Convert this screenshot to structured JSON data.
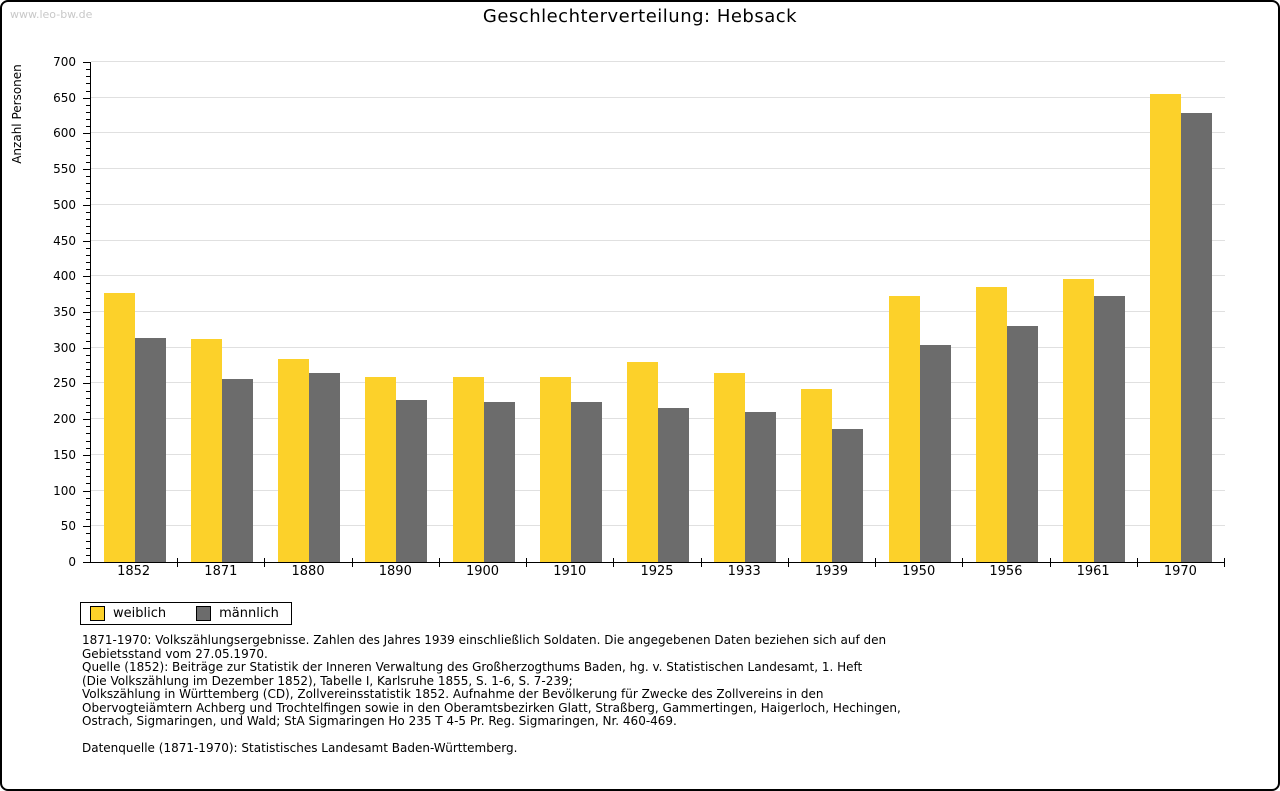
{
  "watermark": "www.leo-bw.de",
  "title": "Geschlechterverteilung: Hebsack",
  "chart_data": {
    "type": "bar",
    "title": "Geschlechterverteilung: Hebsack",
    "xlabel": "",
    "ylabel": "Anzahl Personen",
    "ylim": [
      0,
      700
    ],
    "ytick_step": 50,
    "y_minor_step": 10,
    "grid": true,
    "legend_position": "bottom-left",
    "categories": [
      "1852",
      "1871",
      "1880",
      "1890",
      "1900",
      "1910",
      "1925",
      "1933",
      "1939",
      "1950",
      "1956",
      "1961",
      "1970"
    ],
    "series": [
      {
        "name": "weiblich",
        "color": "#FCD12A",
        "values": [
          377,
          312,
          284,
          259,
          259,
          259,
          280,
          265,
          242,
          372,
          385,
          396,
          655
        ]
      },
      {
        "name": "männlich",
        "color": "#6C6C6C",
        "values": [
          313,
          256,
          265,
          227,
          224,
          224,
          216,
          210,
          186,
          304,
          331,
          372,
          628
        ]
      }
    ]
  },
  "colors": {
    "female": "#FCD12A",
    "male": "#6C6C6C",
    "gridline": "#E0E0E0",
    "axis": "#000000",
    "watermark": "#C8C8C8"
  },
  "footer": {
    "lines": [
      "1871-1970: Volkszählungsergebnisse. Zahlen des Jahres 1939 einschließlich Soldaten. Die angegebenen Daten beziehen sich auf den",
      "Gebietsstand vom 27.05.1970.",
      "Quelle (1852): Beiträge zur Statistik der Inneren Verwaltung des Großherzogthums Baden, hg. v. Statistischen Landesamt, 1. Heft",
      "(Die Volkszählung im Dezember 1852), Tabelle I, Karlsruhe 1855, S. 1-6, S. 7-239;",
      "Volkszählung in Württemberg (CD), Zollvereinsstatistik 1852. Aufnahme der Bevölkerung für Zwecke des Zollvereins in den",
      "Obervogteiämtern Achberg und Trochtelfingen sowie in den Oberamtsbezirken Glatt, Straßberg, Gammertingen, Haigerloch, Hechingen,",
      "Ostrach, Sigmaringen, und Wald; StA Sigmaringen Ho 235 T 4-5 Pr. Reg. Sigmaringen, Nr. 460-469."
    ],
    "source_line": "Datenquelle (1871-1970): Statistisches Landesamt Baden-Württemberg."
  }
}
